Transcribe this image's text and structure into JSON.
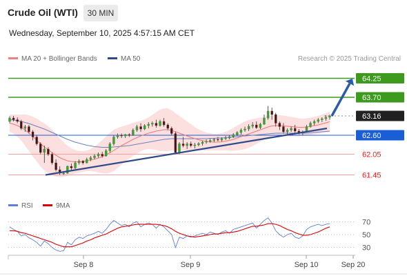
{
  "header": {
    "title": "Crude Oil (WTI)",
    "timeframe": "30 MIN",
    "datetime": "Wednesday, September 10, 2025 4:57:15 AM CET"
  },
  "legend": {
    "items": [
      {
        "label": "MA 20 + Bollinger Bands",
        "color": "#f08080"
      },
      {
        "label": "MA 50",
        "color": "#2c4a8a"
      }
    ],
    "credit": "Research © 2025 Trading Central"
  },
  "rsi_legend": {
    "items": [
      {
        "label": "RSI",
        "color": "#5b7fd6"
      },
      {
        "label": "9MA",
        "color": "#e00000"
      }
    ]
  },
  "chart_data": [
    {
      "type": "candlestick",
      "title": "",
      "x_ticks": [
        "Sep 8",
        "Sep 9",
        "Sep 10",
        "Sep 20"
      ],
      "price_levels": [
        {
          "value": "64.25",
          "kind": "resistance",
          "color": "#3d9a1f",
          "badge": true
        },
        {
          "value": "63.70",
          "kind": "resistance",
          "color": "#3d9a1f",
          "badge": true
        },
        {
          "value": "63.16",
          "kind": "last",
          "color": "#222222",
          "badge": true
        },
        {
          "value": "62.60",
          "kind": "pivot",
          "color": "#1a5ed6",
          "badge": true
        },
        {
          "value": "62.05",
          "kind": "support",
          "color": "#e02020",
          "badge": false
        },
        {
          "value": "61.45",
          "kind": "support",
          "color": "#e02020",
          "badge": false
        }
      ],
      "ylim": [
        61.2,
        64.6
      ],
      "trendline": {
        "from": [
          61.45,
          "Sep 7 19:00"
        ],
        "to": [
          62.8,
          "Sep 10 04:30"
        ]
      },
      "target_arrow": {
        "from": 63.16,
        "to": 64.25
      },
      "candles": [
        [
          63.0,
          63.15,
          62.95,
          63.1
        ],
        [
          63.1,
          63.16,
          63.0,
          63.05
        ],
        [
          63.05,
          63.12,
          62.95,
          63.0
        ],
        [
          63.0,
          63.05,
          62.75,
          62.8
        ],
        [
          62.8,
          62.9,
          62.7,
          62.85
        ],
        [
          62.85,
          62.9,
          62.65,
          62.7
        ],
        [
          62.7,
          62.75,
          62.45,
          62.55
        ],
        [
          62.55,
          62.6,
          62.3,
          62.35
        ],
        [
          62.35,
          62.4,
          62.05,
          62.1
        ],
        [
          62.1,
          62.3,
          61.8,
          62.2
        ],
        [
          62.2,
          62.25,
          62.0,
          62.05
        ],
        [
          62.05,
          62.1,
          61.75,
          61.8
        ],
        [
          61.8,
          61.9,
          61.55,
          61.6
        ],
        [
          61.6,
          61.7,
          61.45,
          61.5
        ],
        [
          61.5,
          61.55,
          61.45,
          61.5
        ],
        [
          61.5,
          61.72,
          61.48,
          61.7
        ],
        [
          61.7,
          61.78,
          61.58,
          61.65
        ],
        [
          61.65,
          61.85,
          61.62,
          61.8
        ],
        [
          61.8,
          61.9,
          61.75,
          61.85
        ],
        [
          61.85,
          61.88,
          61.75,
          61.8
        ],
        [
          61.8,
          61.95,
          61.78,
          61.9
        ],
        [
          61.9,
          62.0,
          61.85,
          61.95
        ],
        [
          61.95,
          62.05,
          61.9,
          62.0
        ],
        [
          62.0,
          62.1,
          61.95,
          62.05
        ],
        [
          62.05,
          62.12,
          61.95,
          62.0
        ],
        [
          62.0,
          62.2,
          61.98,
          62.15
        ],
        [
          62.15,
          62.4,
          62.1,
          62.35
        ],
        [
          62.35,
          62.6,
          62.3,
          62.55
        ],
        [
          62.55,
          62.65,
          62.5,
          62.6
        ],
        [
          62.6,
          62.65,
          62.52,
          62.58
        ],
        [
          62.58,
          62.64,
          62.52,
          62.62
        ],
        [
          62.62,
          62.66,
          62.55,
          62.6
        ],
        [
          62.6,
          62.8,
          62.58,
          62.75
        ],
        [
          62.75,
          62.9,
          62.7,
          62.85
        ],
        [
          62.85,
          62.95,
          62.7,
          62.78
        ],
        [
          62.78,
          62.92,
          62.75,
          62.88
        ],
        [
          62.88,
          62.98,
          62.8,
          62.92
        ],
        [
          62.92,
          63.0,
          62.85,
          62.95
        ],
        [
          62.95,
          63.05,
          62.82,
          62.88
        ],
        [
          62.88,
          63.05,
          62.85,
          63.0
        ],
        [
          63.0,
          63.1,
          62.85,
          62.9
        ],
        [
          62.9,
          62.95,
          62.75,
          62.8
        ],
        [
          62.8,
          62.85,
          62.6,
          62.65
        ],
        [
          62.65,
          62.7,
          62.05,
          62.1
        ],
        [
          62.1,
          62.4,
          62.05,
          62.35
        ],
        [
          62.35,
          62.55,
          62.25,
          62.3
        ],
        [
          62.3,
          62.4,
          62.2,
          62.35
        ],
        [
          62.35,
          62.42,
          62.25,
          62.3
        ],
        [
          62.3,
          62.38,
          62.22,
          62.32
        ],
        [
          62.32,
          62.4,
          62.28,
          62.36
        ],
        [
          62.36,
          62.44,
          62.3,
          62.4
        ],
        [
          62.4,
          62.48,
          62.35,
          62.42
        ],
        [
          62.42,
          62.5,
          62.38,
          62.45
        ],
        [
          62.45,
          62.52,
          62.4,
          62.48
        ],
        [
          62.48,
          62.55,
          62.42,
          62.46
        ],
        [
          62.46,
          62.54,
          62.42,
          62.5
        ],
        [
          62.5,
          62.58,
          62.46,
          62.52
        ],
        [
          62.52,
          62.6,
          62.48,
          62.56
        ],
        [
          62.56,
          62.66,
          62.52,
          62.62
        ],
        [
          62.62,
          62.72,
          62.58,
          62.68
        ],
        [
          62.68,
          62.8,
          62.62,
          62.75
        ],
        [
          62.75,
          62.85,
          62.7,
          62.78
        ],
        [
          62.78,
          62.92,
          62.72,
          62.86
        ],
        [
          62.86,
          62.98,
          62.8,
          62.9
        ],
        [
          62.9,
          63.0,
          62.78,
          62.82
        ],
        [
          62.82,
          62.96,
          62.78,
          62.92
        ],
        [
          62.92,
          63.2,
          62.9,
          63.1
        ],
        [
          63.1,
          63.45,
          63.05,
          63.3
        ],
        [
          63.3,
          63.4,
          63.05,
          63.2
        ],
        [
          63.2,
          63.25,
          62.85,
          62.95
        ],
        [
          62.95,
          63.0,
          62.75,
          62.85
        ],
        [
          62.85,
          62.95,
          62.65,
          62.7
        ],
        [
          62.7,
          62.8,
          62.6,
          62.75
        ],
        [
          62.75,
          62.85,
          62.7,
          62.8
        ],
        [
          62.8,
          62.9,
          62.65,
          62.72
        ],
        [
          62.72,
          62.78,
          62.62,
          62.66
        ],
        [
          62.66,
          62.74,
          62.6,
          62.7
        ],
        [
          62.7,
          62.9,
          62.68,
          62.85
        ],
        [
          62.85,
          63.0,
          62.82,
          62.95
        ],
        [
          62.95,
          63.05,
          62.88,
          63.0
        ],
        [
          63.0,
          63.1,
          62.95,
          63.05
        ],
        [
          63.05,
          63.12,
          62.98,
          63.08
        ],
        [
          63.08,
          63.18,
          63.02,
          63.12
        ],
        [
          63.12,
          63.2,
          63.05,
          63.16
        ]
      ],
      "ma20": [
        62.95,
        62.92,
        62.88,
        62.82,
        62.75,
        62.66,
        62.56,
        62.46,
        62.35,
        62.26,
        62.18,
        62.1,
        62.02,
        61.95,
        61.9,
        61.86,
        61.84,
        61.83,
        61.83,
        61.84,
        61.86,
        61.88,
        61.91,
        61.94,
        61.98,
        62.03,
        62.09,
        62.16,
        62.23,
        62.3,
        62.36,
        62.42,
        62.48,
        62.53,
        62.58,
        62.62,
        62.66,
        62.69,
        62.72,
        62.74,
        62.76,
        62.76,
        62.74,
        62.7,
        62.66,
        62.62,
        62.58,
        62.54,
        62.5,
        62.47,
        62.44,
        62.42,
        62.41,
        62.4,
        62.4,
        62.41,
        62.43,
        62.45,
        62.48,
        62.52,
        62.56,
        62.6,
        62.64,
        62.68,
        62.72,
        62.76,
        62.8,
        62.84,
        62.87,
        62.88,
        62.88,
        62.87,
        62.86,
        62.85,
        62.84,
        62.83,
        62.83,
        62.84,
        62.86,
        62.88,
        62.9,
        62.93,
        62.96,
        62.99
      ],
      "ma50": [
        63.05,
        63.04,
        63.02,
        63.0,
        62.97,
        62.94,
        62.9,
        62.86,
        62.82,
        62.78,
        62.73,
        62.68,
        62.63,
        62.58,
        62.53,
        62.48,
        62.44,
        62.4,
        62.37,
        62.34,
        62.31,
        62.29,
        62.27,
        62.26,
        62.25,
        62.25,
        62.25,
        62.26,
        62.27,
        62.28,
        62.29,
        62.3,
        62.32,
        62.34,
        62.36,
        62.38,
        62.4,
        62.42,
        62.44,
        62.46,
        62.48,
        62.49,
        62.5,
        62.5,
        62.5,
        62.5,
        62.5,
        62.5,
        62.5,
        62.5,
        62.5,
        62.5,
        62.51,
        62.51,
        62.52,
        62.52,
        62.53,
        62.54,
        62.55,
        62.56,
        62.57,
        62.58,
        62.59,
        62.6,
        62.61,
        62.62,
        62.63,
        62.64,
        62.65,
        62.66,
        62.66,
        62.66,
        62.66,
        62.66,
        62.66,
        62.66,
        62.66,
        62.66,
        62.67,
        62.68,
        62.69,
        62.7,
        62.71,
        62.72
      ],
      "band_width": [
        0.25,
        0.28,
        0.32,
        0.38,
        0.45,
        0.52,
        0.58,
        0.62,
        0.66,
        0.68,
        0.68,
        0.66,
        0.62,
        0.56,
        0.5,
        0.44,
        0.38,
        0.34,
        0.32,
        0.3,
        0.3,
        0.32,
        0.36,
        0.42,
        0.48,
        0.54,
        0.58,
        0.6,
        0.58,
        0.55,
        0.52,
        0.5,
        0.48,
        0.46,
        0.44,
        0.44,
        0.46,
        0.5,
        0.55,
        0.6,
        0.62,
        0.62,
        0.58,
        0.54,
        0.5,
        0.46,
        0.42,
        0.38,
        0.34,
        0.3,
        0.28,
        0.26,
        0.25,
        0.24,
        0.24,
        0.25,
        0.27,
        0.3,
        0.33,
        0.36,
        0.38,
        0.4,
        0.4,
        0.39,
        0.37,
        0.35,
        0.33,
        0.31,
        0.3,
        0.3,
        0.3,
        0.3,
        0.29,
        0.28,
        0.27,
        0.26,
        0.25,
        0.25,
        0.25,
        0.25,
        0.26,
        0.27,
        0.28,
        0.3
      ]
    },
    {
      "type": "line",
      "title": "",
      "ylim": [
        20,
        80
      ],
      "y_ticks": [
        "70",
        "50",
        "30"
      ],
      "series": [
        {
          "name": "RSI",
          "color": "#5b7fd6",
          "values": [
            62,
            58,
            55,
            48,
            50,
            45,
            42,
            38,
            32,
            40,
            36,
            30,
            26,
            24,
            25,
            38,
            34,
            42,
            46,
            44,
            48,
            50,
            52,
            55,
            52,
            58,
            66,
            72,
            68,
            64,
            66,
            62,
            68,
            70,
            62,
            66,
            68,
            66,
            60,
            66,
            62,
            56,
            50,
            30,
            46,
            44,
            48,
            46,
            48,
            50,
            52,
            50,
            54,
            52,
            50,
            54,
            56,
            52,
            58,
            60,
            62,
            64,
            66,
            68,
            60,
            66,
            72,
            76,
            68,
            56,
            50,
            46,
            50,
            52,
            46,
            44,
            48,
            58,
            62,
            64,
            66,
            64,
            66,
            67
          ]
        },
        {
          "name": "9MA",
          "color": "#e00000",
          "values": [
            56,
            56,
            55,
            53,
            52,
            50,
            48,
            46,
            44,
            42,
            40,
            38,
            35,
            33,
            31,
            31,
            31,
            33,
            35,
            37,
            40,
            42,
            45,
            47,
            49,
            51,
            54,
            57,
            60,
            62,
            63,
            64,
            65,
            66,
            66,
            66,
            66,
            66,
            66,
            65,
            64,
            62,
            59,
            55,
            52,
            50,
            48,
            47,
            46,
            47,
            48,
            49,
            50,
            51,
            51,
            52,
            53,
            53,
            54,
            55,
            57,
            59,
            61,
            63,
            63,
            64,
            65,
            67,
            67,
            66,
            64,
            61,
            58,
            56,
            53,
            51,
            49,
            49,
            50,
            52,
            54,
            57,
            60,
            62
          ]
        }
      ]
    }
  ]
}
